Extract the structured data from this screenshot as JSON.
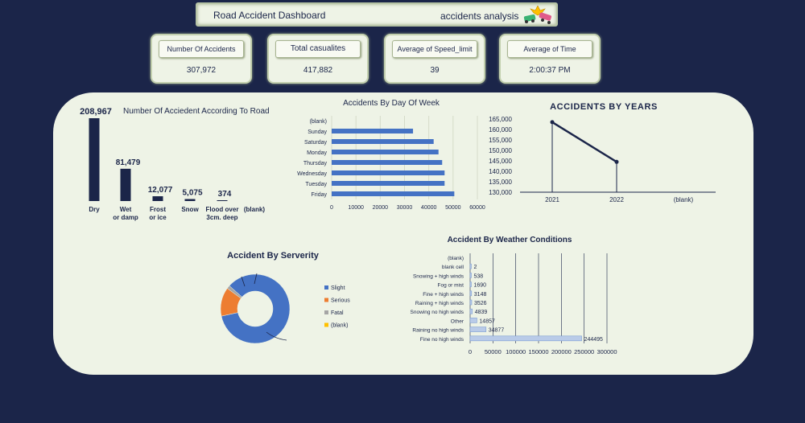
{
  "header": {
    "title": "Road Accident Dashboard",
    "subtitle": "accidents analysis",
    "icon": "car-crash-icon"
  },
  "kpis": [
    {
      "label": "Number Of Accidents",
      "value": "307,972"
    },
    {
      "label": "Total casualites",
      "value": "417,882"
    },
    {
      "label": "Average of Speed_limit",
      "value": "39"
    },
    {
      "label": "Average of Time",
      "value": "2:00:37 PM"
    }
  ],
  "colors": {
    "background": "#1b2549",
    "panel": "#eef3e6",
    "dark_bar": "#1b2549",
    "blue_bar": "#4472c4",
    "orange": "#ed7d31",
    "gray": "#a5a5a5",
    "yellow": "#ffc000"
  },
  "chart_data": [
    {
      "type": "bar",
      "title": "Number Of Acciedent According To Road",
      "categories": [
        "Dry",
        "Wet or damp",
        "Frost or ice",
        "Snow",
        "Flood over 3cm. deep",
        "(blank)"
      ],
      "values": [
        208967,
        81479,
        12077,
        5075,
        374,
        null
      ],
      "data_labels": [
        "208,967",
        "81,479",
        "12,077",
        "5,075",
        "374",
        ""
      ]
    },
    {
      "type": "bar",
      "orientation": "horizontal",
      "title": "Accidents By Day Of Week",
      "categories": [
        "(blank)",
        "Sunday",
        "Saturday",
        "Monday",
        "Thursday",
        "Wednesday",
        "Tuesday",
        "Friday"
      ],
      "values": [
        null,
        33500,
        42000,
        44000,
        45500,
        46500,
        46500,
        50500
      ],
      "xlim": [
        0,
        60000
      ],
      "xticks": [
        "0",
        "10000",
        "20000",
        "30000",
        "40000",
        "50000",
        "60000"
      ],
      "grid": true
    },
    {
      "type": "line",
      "title": "ACCIDENTS BY YEARS",
      "categories": [
        "2021",
        "2022",
        "(blank)"
      ],
      "values": [
        163500,
        144500,
        null
      ],
      "ylim": [
        130000,
        165000
      ],
      "yticks": [
        "165,000",
        "160,000",
        "155,000",
        "150,000",
        "145,000",
        "140,000",
        "135,000",
        "130,000"
      ]
    },
    {
      "type": "pie",
      "donut": true,
      "title": "Accident By Serverity",
      "categories": [
        "Slight",
        "Serious",
        "Fatal",
        "(blank)"
      ],
      "values": [
        85,
        13.5,
        1.5,
        0
      ],
      "legend": "right"
    },
    {
      "type": "bar",
      "orientation": "horizontal",
      "title": "Accident By Weather Conditions",
      "categories": [
        "(blank)",
        "blank cell",
        "Snowing + high winds",
        "Fog or mist",
        "Fine + high winds",
        "Raining + high winds",
        "Snowing no high winds",
        "Other",
        "Raining no high winds",
        "Fine no high winds"
      ],
      "values": [
        null,
        2,
        538,
        1690,
        3148,
        3526,
        4839,
        14857,
        34877,
        244495
      ],
      "data_labels": [
        "",
        "2",
        "538",
        "1690",
        "3148",
        "3526",
        "4839",
        "14857",
        "34877",
        "244495"
      ],
      "xlim": [
        0,
        300000
      ],
      "xticks": [
        "0",
        "50000",
        "100000",
        "150000",
        "200000",
        "250000",
        "300000"
      ],
      "grid": true
    }
  ]
}
